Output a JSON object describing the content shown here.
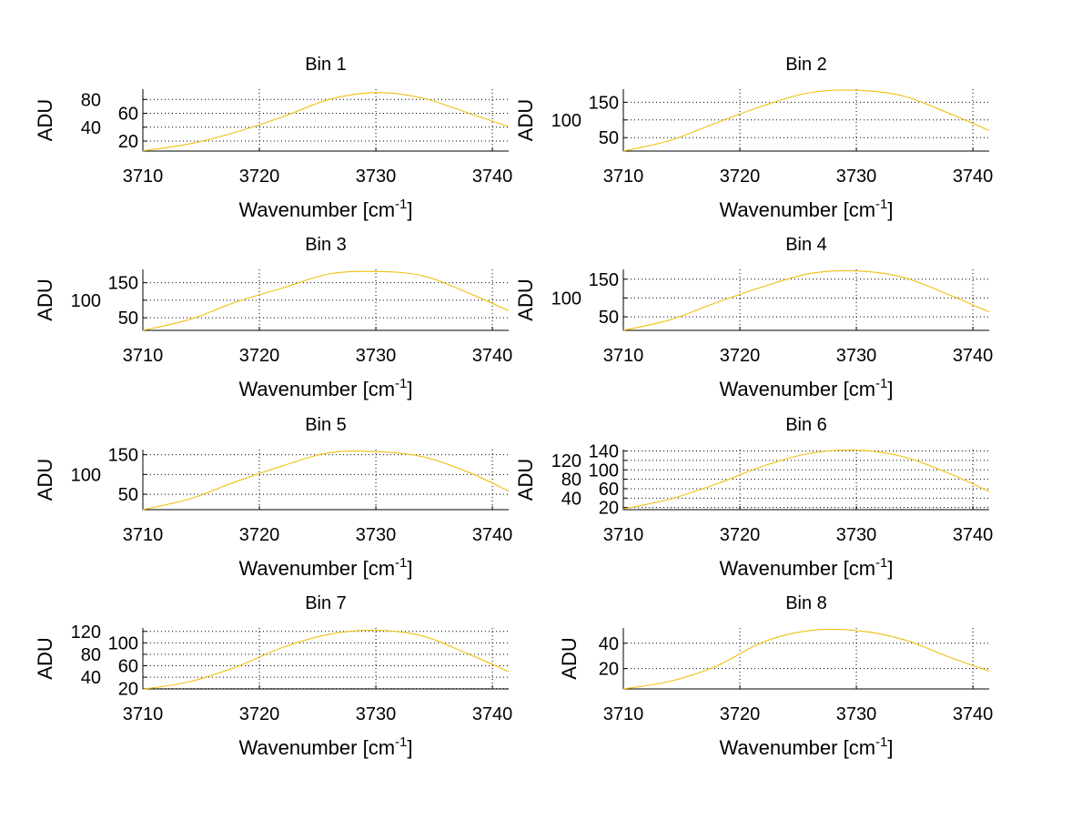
{
  "chart_data": [
    {
      "type": "line",
      "title": "Bin 1",
      "xlabel_prefix": "Wavenumber [cm",
      "xlabel_sup": "-1",
      "xlabel_suffix": "]",
      "ylabel": "ADU",
      "xlim": [
        3710,
        3741.4
      ],
      "ylim": [
        5.6,
        94.8
      ],
      "xticks": [
        3710,
        3720,
        3730,
        3740
      ],
      "yticks": [
        20,
        40,
        60,
        80
      ],
      "grid": true,
      "x": [
        3710,
        3714,
        3718,
        3722,
        3726,
        3730,
        3734,
        3738,
        3741.4
      ],
      "y": [
        6,
        16,
        33,
        55,
        80,
        90,
        82,
        60,
        41
      ]
    },
    {
      "type": "line",
      "title": "Bin 2",
      "xlabel_prefix": "Wavenumber [cm",
      "xlabel_sup": "-1",
      "xlabel_suffix": "]",
      "ylabel": "ADU",
      "xlim": [
        3710,
        3741.4
      ],
      "ylim": [
        12,
        187
      ],
      "xticks": [
        3710,
        3720,
        3730,
        3740
      ],
      "yticks": [
        50,
        100,
        150
      ],
      "grid": true,
      "x": [
        3710,
        3714,
        3718,
        3722,
        3726,
        3730,
        3734,
        3738,
        3741.4
      ],
      "y": [
        12,
        42,
        92,
        140,
        177,
        184,
        168,
        118,
        70
      ]
    },
    {
      "type": "line",
      "title": "Bin 3",
      "xlabel_prefix": "Wavenumber [cm",
      "xlabel_sup": "-1",
      "xlabel_suffix": "]",
      "ylabel": "ADU",
      "xlim": [
        3710,
        3741.4
      ],
      "ylim": [
        14,
        188
      ],
      "xticks": [
        3710,
        3720,
        3730,
        3740
      ],
      "yticks": [
        50,
        100,
        150
      ],
      "grid": true,
      "x": [
        3710,
        3714,
        3718,
        3722,
        3726,
        3730,
        3734,
        3738,
        3741.4
      ],
      "y": [
        14,
        45,
        95,
        135,
        175,
        182,
        170,
        120,
        70
      ]
    },
    {
      "type": "line",
      "title": "Bin 4",
      "xlabel_prefix": "Wavenumber [cm",
      "xlabel_sup": "-1",
      "xlabel_suffix": "]",
      "ylabel": "ADU",
      "xlim": [
        3710,
        3741.4
      ],
      "ylim": [
        14,
        176
      ],
      "xticks": [
        3710,
        3720,
        3730,
        3740
      ],
      "yticks": [
        50,
        100,
        150
      ],
      "grid": true,
      "x": [
        3710,
        3714,
        3718,
        3722,
        3726,
        3730,
        3734,
        3738,
        3741.4
      ],
      "y": [
        14,
        42,
        88,
        130,
        165,
        172,
        155,
        108,
        63
      ]
    },
    {
      "type": "line",
      "title": "Bin 5",
      "xlabel_prefix": "Wavenumber [cm",
      "xlabel_sup": "-1",
      "xlabel_suffix": "]",
      "ylabel": "ADU",
      "xlim": [
        3710,
        3741.4
      ],
      "ylim": [
        11,
        163
      ],
      "xticks": [
        3710,
        3720,
        3730,
        3740
      ],
      "yticks": [
        50,
        100,
        150
      ],
      "grid": true,
      "x": [
        3710,
        3714,
        3718,
        3722,
        3726,
        3730,
        3734,
        3738,
        3741.4
      ],
      "y": [
        11,
        38,
        82,
        122,
        155,
        158,
        145,
        105,
        58
      ]
    },
    {
      "type": "line",
      "title": "Bin 6",
      "xlabel_prefix": "Wavenumber [cm",
      "xlabel_sup": "-1",
      "xlabel_suffix": "]",
      "ylabel": "ADU",
      "xlim": [
        3710,
        3741.4
      ],
      "ylim": [
        15.5,
        143
      ],
      "xticks": [
        3710,
        3720,
        3730,
        3740
      ],
      "yticks": [
        20,
        40,
        60,
        80,
        100,
        120,
        140
      ],
      "grid": true,
      "x": [
        3710,
        3714,
        3718,
        3722,
        3726,
        3730,
        3734,
        3738,
        3741.4
      ],
      "y": [
        17,
        38,
        70,
        108,
        135,
        142,
        128,
        92,
        54
      ]
    },
    {
      "type": "line",
      "title": "Bin 7",
      "xlabel_prefix": "Wavenumber [cm",
      "xlabel_sup": "-1",
      "xlabel_suffix": "]",
      "ylabel": "ADU",
      "xlim": [
        3710,
        3741.4
      ],
      "ylim": [
        19.5,
        126
      ],
      "xticks": [
        3710,
        3720,
        3730,
        3740
      ],
      "yticks": [
        20,
        40,
        60,
        80,
        100,
        120
      ],
      "grid": true,
      "x": [
        3710,
        3714,
        3718,
        3722,
        3726,
        3730,
        3734,
        3738,
        3741.4
      ],
      "y": [
        19,
        32,
        58,
        92,
        115,
        122,
        112,
        80,
        50
      ]
    },
    {
      "type": "line",
      "title": "Bin 8",
      "xlabel_prefix": "Wavenumber [cm",
      "xlabel_sup": "-1",
      "xlabel_suffix": "]",
      "ylabel": "ADU",
      "xlim": [
        3710,
        3741.4
      ],
      "ylim": [
        4,
        52
      ],
      "xticks": [
        3710,
        3720,
        3730,
        3740
      ],
      "yticks": [
        20,
        40
      ],
      "grid": true,
      "x": [
        3710,
        3714,
        3718,
        3722,
        3726,
        3730,
        3734,
        3738,
        3741.4
      ],
      "y": [
        4,
        10,
        22,
        41,
        50,
        50,
        43,
        29,
        18
      ]
    }
  ],
  "colors": {
    "line": "#f0c010",
    "axis": "#000000"
  }
}
